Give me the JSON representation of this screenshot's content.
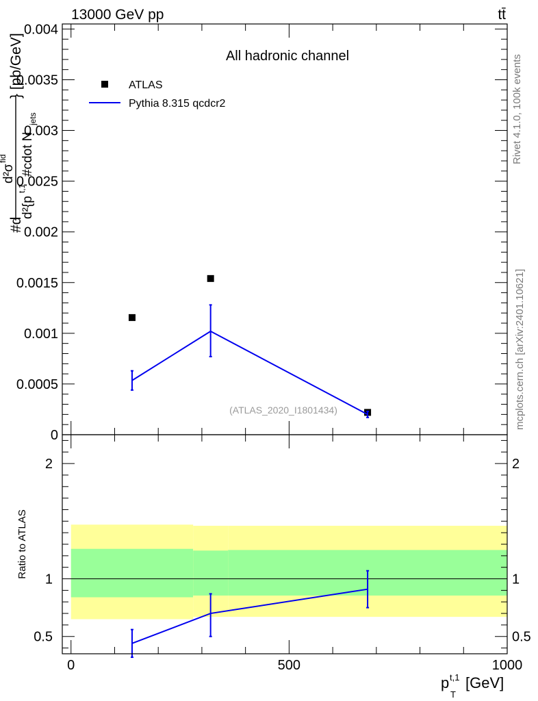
{
  "header": {
    "left": "13000 GeV pp",
    "right": "tt̄"
  },
  "side": {
    "rivet": "Rivet 4.1.0,  100k events",
    "mcplots": "mcplots.cern.ch [arXiv:2401.10621]"
  },
  "colors": {
    "atlas": "#000000",
    "pythia": "#0000ee",
    "band_inner": "#99ff99",
    "band_outer": "#ffff99"
  },
  "chart_data": [
    {
      "type": "scatter",
      "title": "All hadronic channel",
      "watermark": "(ATLAS_2020_I1801434)",
      "ylabel": "#d d²σ^fid / d²{p_T^{t,1} #cdot N_jets} [pb/GeV]",
      "ylabel_parts": {
        "top": "#d",
        "num": "d²σ",
        "num_sup": "fid",
        "den": "d²{p",
        "den_sup": "t,1",
        "den_rest": "#cdot N",
        "den_sub": "jets",
        "unit": "} [pb/GeV]"
      },
      "xlim": [
        -20,
        1000
      ],
      "ylim": [
        0,
        0.00405
      ],
      "yticks": [
        0,
        0.0005,
        0.001,
        0.0015,
        0.002,
        0.0025,
        0.003,
        0.0035,
        0.004
      ],
      "ytick_labels": [
        "0",
        "0.0005",
        "0.001",
        "0.0015",
        "0.002",
        "0.0025",
        "0.003",
        "0.0035",
        "0.004"
      ],
      "legend": [
        "ATLAS",
        "Pythia 8.315 qcdcr2"
      ],
      "series": [
        {
          "name": "ATLAS",
          "x": [
            140,
            320,
            680
          ],
          "y": [
            0.001155,
            0.00154,
            0.00022
          ]
        },
        {
          "name": "Pythia 8.315 qcdcr2",
          "x": [
            140,
            320,
            680
          ],
          "y": [
            0.000535,
            0.00102,
            0.0002
          ],
          "err_low": [
            0.00044,
            0.00077,
            0.00017
          ],
          "err_high": [
            0.00063,
            0.00128,
            0.00023
          ]
        }
      ]
    },
    {
      "type": "line",
      "ylabel": "Ratio to ATLAS",
      "xlabel_main": "p",
      "xlabel_sup": "t,1",
      "xlabel_sub": "T",
      "xlabel_unit": "[GeV]",
      "xlim": [
        -20,
        1000
      ],
      "ylim": [
        0.35,
        2.25
      ],
      "yticks": [
        0.5,
        1,
        2
      ],
      "ytick_labels": [
        "0.5",
        "1",
        "2"
      ],
      "xticks": [
        0,
        500,
        1000
      ],
      "xtick_labels": [
        "0",
        "500",
        "1000"
      ],
      "bands": [
        {
          "x0": 0,
          "x1": 280,
          "inner": [
            0.84,
            1.26
          ],
          "outer": [
            0.65,
            1.47
          ]
        },
        {
          "x0": 280,
          "x1": 360,
          "inner": [
            0.855,
            1.245
          ],
          "outer": [
            0.67,
            1.46
          ]
        },
        {
          "x0": 360,
          "x1": 1000,
          "inner": [
            0.855,
            1.25
          ],
          "outer": [
            0.67,
            1.46
          ]
        }
      ],
      "series": [
        {
          "name": "Pythia 8.315 qcdcr2",
          "x": [
            140,
            320,
            680
          ],
          "y": [
            0.44,
            0.7,
            0.91
          ],
          "err_low": [
            0.32,
            0.5,
            0.75
          ],
          "err_high": [
            0.56,
            0.87,
            1.07
          ]
        }
      ]
    }
  ]
}
